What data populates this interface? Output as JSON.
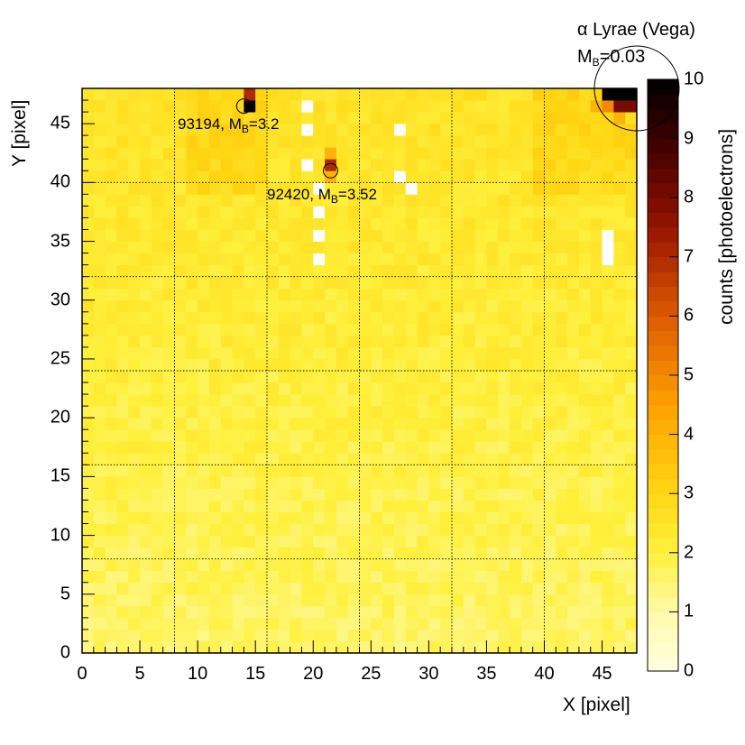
{
  "chart_data": {
    "type": "heatmap",
    "xlabel": "X [pixel]",
    "ylabel": "Y [pixel]",
    "zlabel": "counts [photoelectrons]",
    "xlim": [
      0,
      48
    ],
    "ylim": [
      0,
      48
    ],
    "zlim": [
      0,
      10
    ],
    "x_ticks": [
      "0",
      "5",
      "10",
      "15",
      "20",
      "25",
      "30",
      "35",
      "40",
      "45"
    ],
    "y_ticks": [
      "0",
      "5",
      "10",
      "15",
      "20",
      "25",
      "30",
      "35",
      "40",
      "45"
    ],
    "z_ticks": [
      "0",
      "1",
      "2",
      "3",
      "4",
      "5",
      "6",
      "7",
      "8",
      "9",
      "10"
    ],
    "module_grid_lines": [
      8,
      16,
      24,
      32,
      40
    ],
    "baseline_counts": {
      "bottom_rows": 1.6,
      "top_rows": 2.5
    },
    "bright_pixels": [
      {
        "x": 14,
        "y": 46,
        "counts": 10
      },
      {
        "x": 14,
        "y": 47,
        "counts": 7
      },
      {
        "x": 21,
        "y": 41,
        "counts": 7
      },
      {
        "x": 21,
        "y": 42,
        "counts": 4
      },
      {
        "x": 21,
        "y": 40,
        "counts": 4
      },
      {
        "x": 45,
        "y": 47,
        "counts": 10
      },
      {
        "x": 46,
        "y": 47,
        "counts": 10
      },
      {
        "x": 47,
        "y": 47,
        "counts": 10
      },
      {
        "x": 45,
        "y": 46,
        "counts": 5
      },
      {
        "x": 46,
        "y": 46,
        "counts": 8
      },
      {
        "x": 47,
        "y": 46,
        "counts": 8
      },
      {
        "x": 44,
        "y": 46,
        "counts": 4
      },
      {
        "x": 46,
        "y": 45,
        "counts": 4
      }
    ],
    "dead_pixels": [
      [
        19,
        46
      ],
      [
        19,
        44
      ],
      [
        19,
        41
      ],
      [
        20,
        39
      ],
      [
        20,
        37
      ],
      [
        20,
        35
      ],
      [
        20,
        33
      ],
      [
        27,
        44
      ],
      [
        27,
        40
      ],
      [
        28,
        39
      ],
      [
        45,
        33
      ],
      [
        45,
        34
      ],
      [
        45,
        35
      ]
    ],
    "colors": {
      "low": "#ffffe0",
      "mid": "#ffee33",
      "high": "#ff8800",
      "max": "#000000",
      "dead_pixel": "#ffffff"
    },
    "annotations": [
      {
        "text": "93194, M",
        "sub": "B",
        "tail": "=3.2",
        "star_x": 14,
        "star_y": 46.5
      },
      {
        "text": "92420, M",
        "sub": "B",
        "tail": "=3.52",
        "star_x": 21.5,
        "star_y": 41
      },
      {
        "text": "α Lyrae (Vega)",
        "line2": "M",
        "sub": "B",
        "tail": "=0.03",
        "star_x": 48,
        "star_y": 48
      }
    ]
  }
}
